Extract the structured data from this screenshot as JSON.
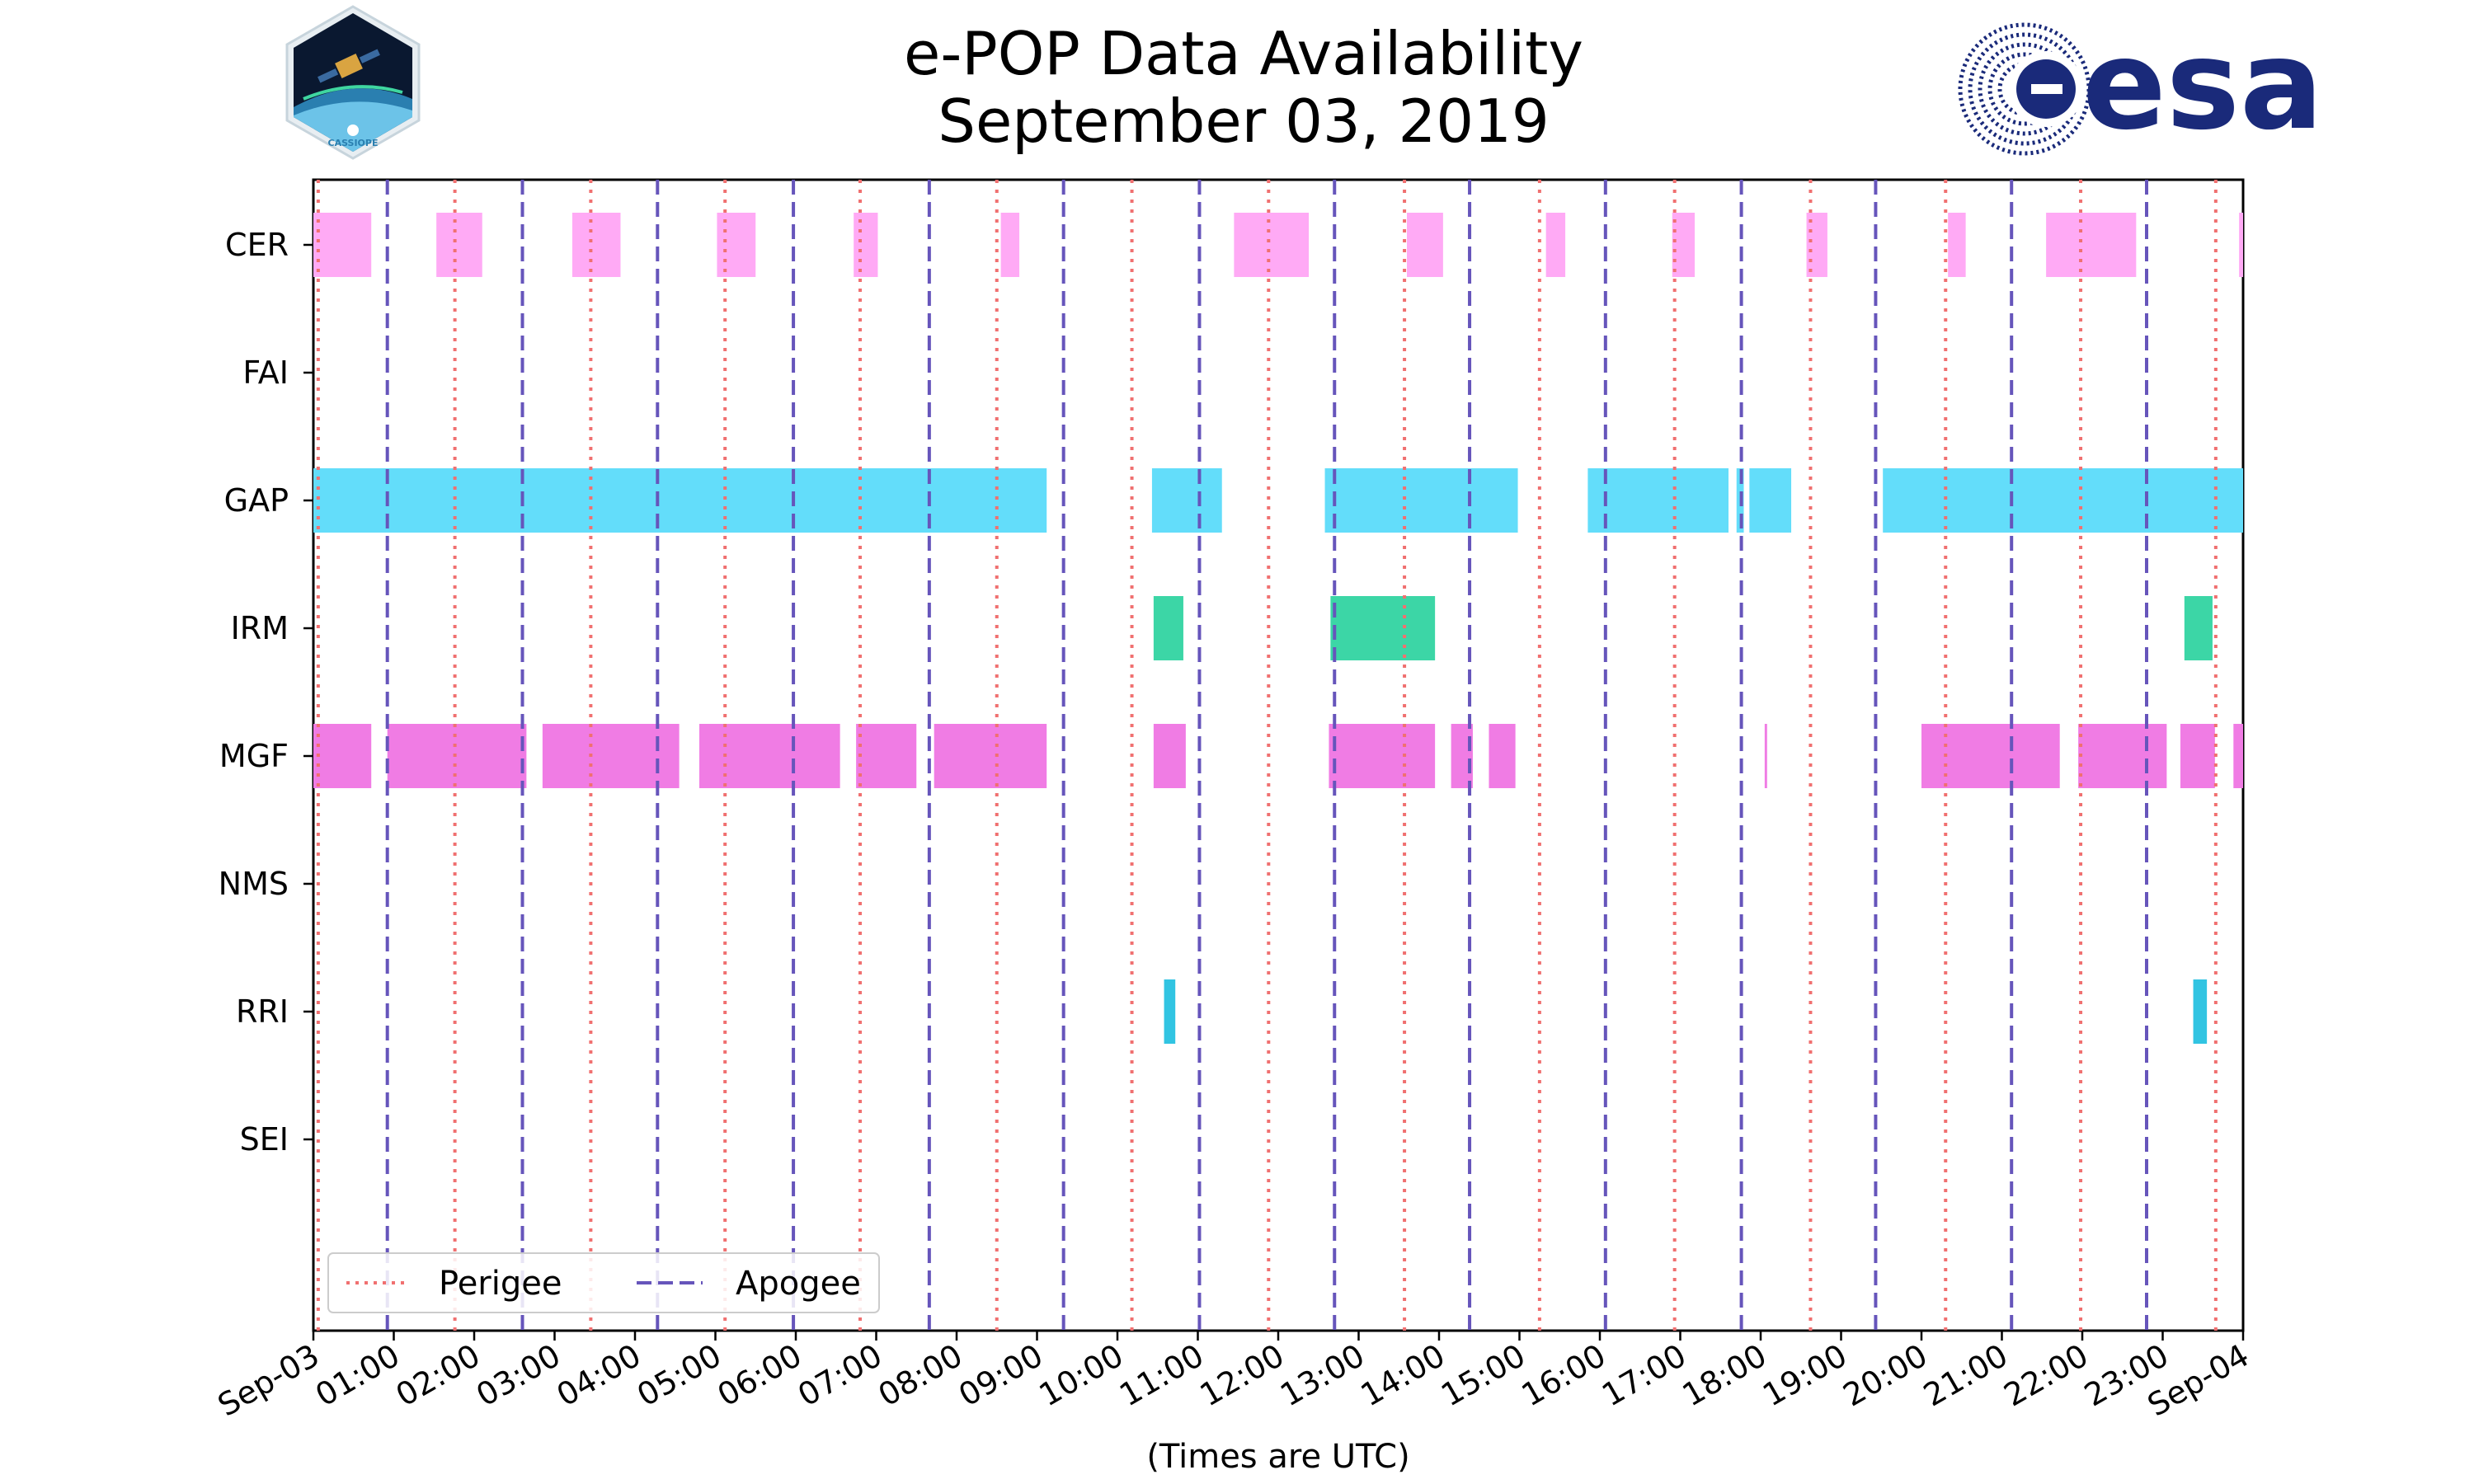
{
  "chart_data": {
    "type": "timeline",
    "title": [
      "e-POP Data Availability",
      "September 03, 2019"
    ],
    "xlabel": "(Times are UTC)",
    "xlim_hours": [
      0,
      24
    ],
    "x_tick_labels": [
      "Sep-03",
      "01:00",
      "02:00",
      "03:00",
      "04:00",
      "05:00",
      "06:00",
      "07:00",
      "08:00",
      "09:00",
      "10:00",
      "11:00",
      "12:00",
      "13:00",
      "14:00",
      "15:00",
      "16:00",
      "17:00",
      "18:00",
      "19:00",
      "20:00",
      "21:00",
      "22:00",
      "23:00",
      "Sep-04"
    ],
    "instruments": [
      "CER",
      "FAI",
      "GAP",
      "IRM",
      "MGF",
      "NMS",
      "RRI",
      "SEI"
    ],
    "perigee_hours": [
      0.06,
      1.76,
      3.45,
      5.12,
      6.8,
      8.5,
      10.18,
      11.88,
      13.57,
      15.25,
      16.93,
      18.62,
      20.3,
      21.98,
      23.66
    ],
    "apogee_hours": [
      0.92,
      2.6,
      4.28,
      5.97,
      7.66,
      9.33,
      11.02,
      12.7,
      14.38,
      16.07,
      17.76,
      19.43,
      21.12,
      22.8
    ],
    "series": [
      {
        "name": "CER",
        "color": "#FFAAF5",
        "intervals": [
          [
            0,
            0.72
          ],
          [
            1.53,
            2.1
          ],
          [
            3.22,
            3.82
          ],
          [
            5.02,
            5.5
          ],
          [
            6.72,
            7.02
          ],
          [
            8.55,
            8.78
          ],
          [
            11.45,
            12.38
          ],
          [
            13.6,
            14.05
          ],
          [
            15.33,
            15.57
          ],
          [
            16.9,
            17.18
          ],
          [
            18.57,
            18.83
          ],
          [
            20.33,
            20.55
          ],
          [
            21.55,
            22.67
          ],
          [
            23.95,
            24
          ]
        ]
      },
      {
        "name": "FAI",
        "color": "#8888ff",
        "intervals": []
      },
      {
        "name": "GAP",
        "color": "#63DDFA",
        "intervals": [
          [
            0,
            9.12
          ],
          [
            10.43,
            11.3
          ],
          [
            12.58,
            14.98
          ],
          [
            15.85,
            17.6
          ],
          [
            17.7,
            17.79
          ],
          [
            17.86,
            18.38
          ],
          [
            19.52,
            24
          ]
        ]
      },
      {
        "name": "IRM",
        "color": "#3CD6A6",
        "intervals": [
          [
            10.45,
            10.82
          ],
          [
            12.65,
            13.95
          ],
          [
            23.27,
            23.62
          ]
        ]
      },
      {
        "name": "MGF",
        "color": "#F07CE4",
        "intervals": [
          [
            0,
            0.72
          ],
          [
            0.92,
            2.65
          ],
          [
            2.85,
            4.55
          ],
          [
            4.8,
            6.55
          ],
          [
            6.75,
            7.5
          ],
          [
            7.72,
            9.12
          ],
          [
            10.45,
            10.85
          ],
          [
            12.63,
            13.95
          ],
          [
            14.15,
            14.42
          ],
          [
            14.62,
            14.95
          ],
          [
            18.05,
            18.08
          ],
          [
            20.0,
            21.72
          ],
          [
            21.95,
            23.05
          ],
          [
            23.22,
            23.65
          ],
          [
            23.88,
            24
          ]
        ]
      },
      {
        "name": "NMS",
        "color": "#8888ff",
        "intervals": []
      },
      {
        "name": "RRI",
        "color": "#31C4E2",
        "intervals": [
          [
            10.58,
            10.72
          ],
          [
            23.38,
            23.55
          ]
        ]
      },
      {
        "name": "SEI",
        "color": "#8888ff",
        "intervals": []
      }
    ],
    "legend": {
      "position": "lower-left",
      "entries": [
        {
          "label": "Perigee",
          "style": "dotted",
          "color": "#F07070"
        },
        {
          "label": "Apogee",
          "style": "dashed",
          "color": "#6655BB"
        }
      ]
    }
  },
  "logos": {
    "left": {
      "text": "CASSIOPE",
      "name": "cassiope"
    },
    "right": {
      "text": "esa",
      "color": "#1A2A7A",
      "name": "esa"
    }
  },
  "colors": {
    "perigee": "#F07070",
    "apogee": "#6655BB",
    "axis": "#000000"
  }
}
